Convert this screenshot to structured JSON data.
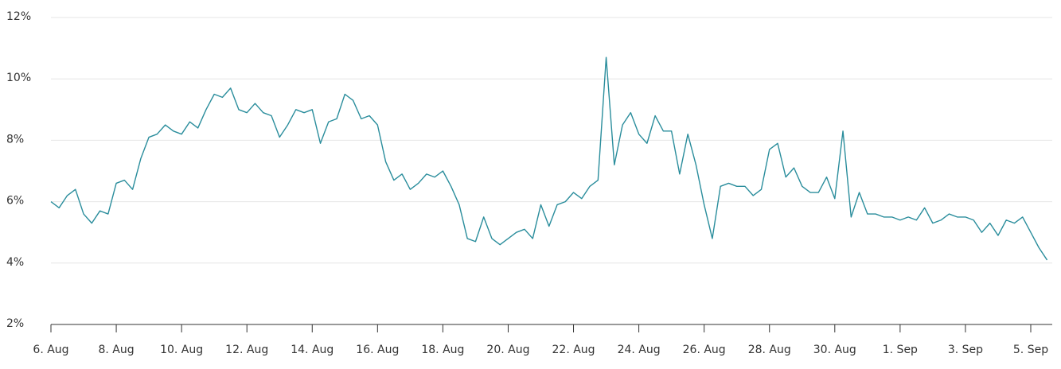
{
  "chart_data": {
    "type": "line",
    "color": "#2a8d9c",
    "grid": true,
    "categories": [
      "6. Aug",
      null,
      null,
      null,
      null,
      null,
      null,
      null,
      "8. Aug",
      null,
      null,
      null,
      null,
      null,
      null,
      null,
      "10. Aug",
      null,
      null,
      null,
      null,
      null,
      null,
      null,
      "12. Aug",
      null,
      null,
      null,
      null,
      null,
      null,
      null,
      "14. Aug",
      null,
      null,
      null,
      null,
      null,
      null,
      null,
      "16. Aug",
      null,
      null,
      null,
      null,
      null,
      null,
      null,
      "18. Aug",
      null,
      null,
      null,
      null,
      null,
      null,
      null,
      "20. Aug",
      null,
      null,
      null,
      null,
      null,
      null,
      null,
      "22. Aug",
      null,
      null,
      null,
      null,
      null,
      null,
      null,
      "24. Aug",
      null,
      null,
      null,
      null,
      null,
      null,
      null,
      "26. Aug",
      null,
      null,
      null,
      null,
      null,
      null,
      null,
      "28. Aug",
      null,
      null,
      null,
      null,
      null,
      null,
      null,
      "30. Aug",
      null,
      null,
      null,
      null,
      null,
      null,
      null,
      "1. Sep",
      null,
      null,
      null,
      null,
      null,
      null,
      null,
      "3. Sep",
      null,
      null,
      null,
      null,
      null,
      null,
      null,
      "5. Sep",
      null,
      null
    ],
    "values": [
      6.0,
      5.8,
      6.2,
      6.4,
      5.6,
      5.3,
      5.7,
      5.6,
      6.6,
      6.7,
      6.4,
      7.4,
      8.1,
      8.2,
      8.5,
      8.3,
      8.2,
      8.6,
      8.4,
      9.0,
      9.5,
      9.4,
      9.7,
      9.0,
      8.9,
      9.2,
      8.9,
      8.8,
      8.1,
      8.5,
      9.0,
      8.9,
      9.0,
      7.9,
      8.6,
      8.7,
      9.5,
      9.3,
      8.7,
      8.8,
      8.5,
      7.3,
      6.7,
      6.9,
      6.4,
      6.6,
      6.9,
      6.8,
      7.0,
      6.5,
      5.9,
      4.8,
      4.7,
      5.5,
      4.8,
      4.6,
      4.8,
      5.0,
      5.1,
      4.8,
      5.9,
      5.2,
      5.9,
      6.0,
      6.3,
      6.1,
      6.5,
      6.7,
      10.7,
      7.2,
      8.5,
      8.9,
      8.2,
      7.9,
      8.8,
      8.3,
      8.3,
      6.9,
      8.2,
      7.2,
      5.9,
      4.8,
      6.5,
      6.6,
      6.5,
      6.5,
      6.2,
      6.4,
      7.7,
      7.9,
      6.8,
      7.1,
      6.5,
      6.3,
      6.3,
      6.8,
      6.1,
      8.3,
      5.5,
      6.3,
      5.6,
      5.6,
      5.5,
      5.5,
      5.4,
      5.5,
      5.4,
      5.8,
      5.3,
      5.4,
      5.6,
      5.5,
      5.5,
      5.4,
      5.0,
      5.3,
      4.9,
      5.4,
      5.3,
      5.5,
      5.0,
      4.5,
      4.1
    ],
    "ylim": [
      2,
      12
    ],
    "yticks": [
      {
        "value": 2,
        "label": "2%"
      },
      {
        "value": 4,
        "label": "4%"
      },
      {
        "value": 6,
        "label": "6%"
      },
      {
        "value": 8,
        "label": "8%"
      },
      {
        "value": 10,
        "label": "10%"
      },
      {
        "value": 12,
        "label": "12%"
      }
    ]
  }
}
